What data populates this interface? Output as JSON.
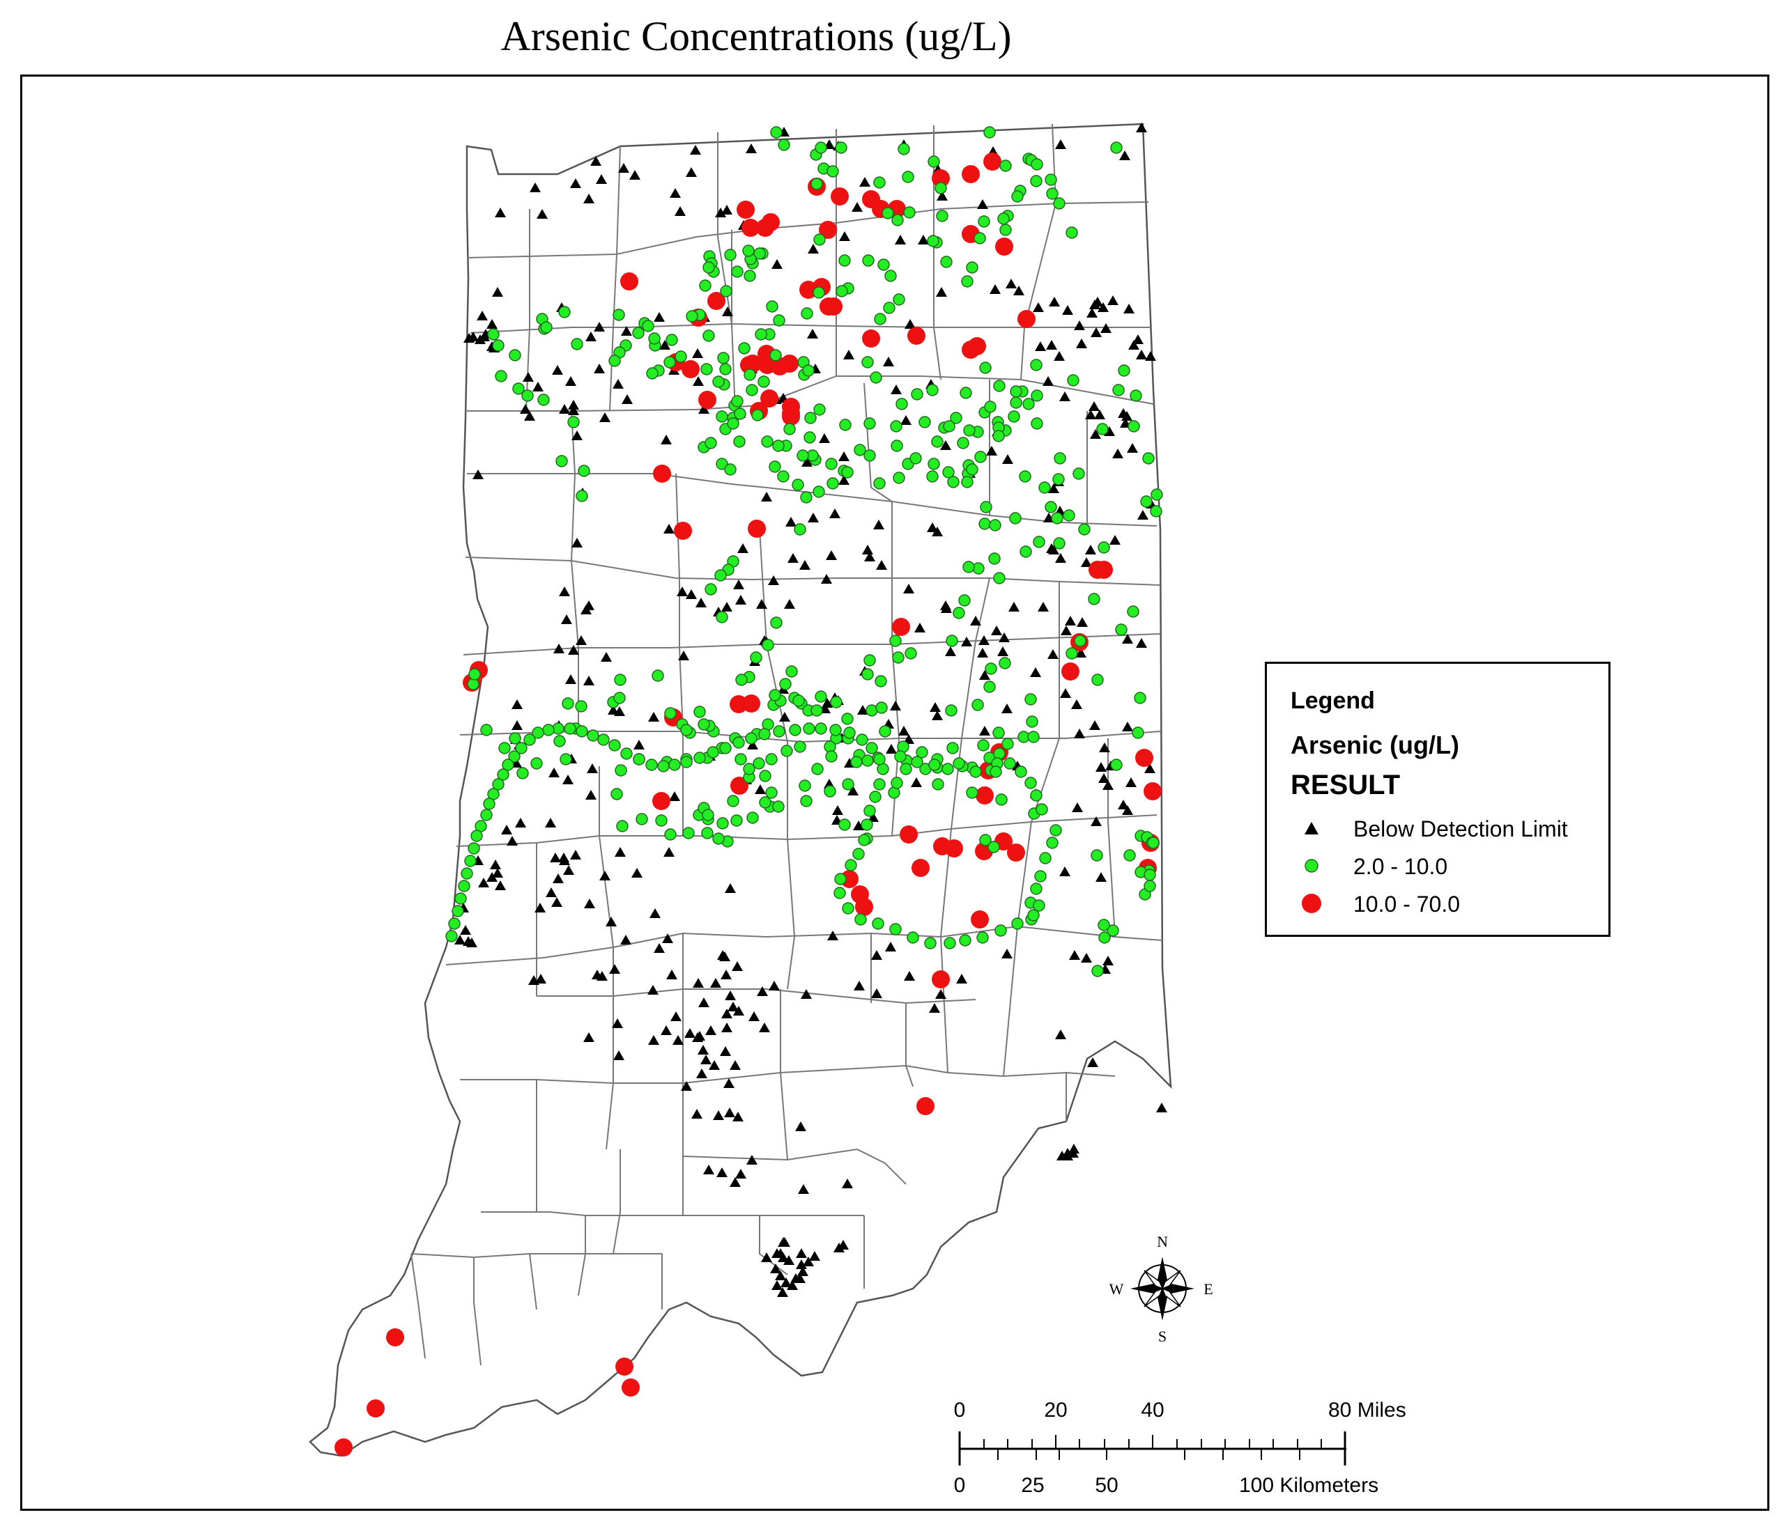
{
  "title": "Arsenic Concentrations (ug/L)",
  "legend": {
    "title": "Legend",
    "layer": "Arsenic (ug/L)",
    "field": "RESULT",
    "items": [
      {
        "label": "Below Detection Limit",
        "symbol": "triangle",
        "color": "#000000"
      },
      {
        "label": "2.0 - 10.0",
        "symbol": "circle",
        "color": "#22ee22"
      },
      {
        "label": "10.0 - 70.0",
        "symbol": "circle",
        "color": "#ee1111"
      }
    ]
  },
  "scale_bar": {
    "miles_labels": [
      "0",
      "20",
      "40",
      "80 Miles"
    ],
    "km_labels": [
      "0",
      "25",
      "50",
      "100 Kilometers"
    ]
  },
  "compass": {
    "n": "N",
    "s": "S",
    "e": "E",
    "w": "W"
  },
  "colors": {
    "below_detection": "#000000",
    "low": "#22ee22",
    "high": "#ee1111",
    "boundary": "#555555"
  }
}
